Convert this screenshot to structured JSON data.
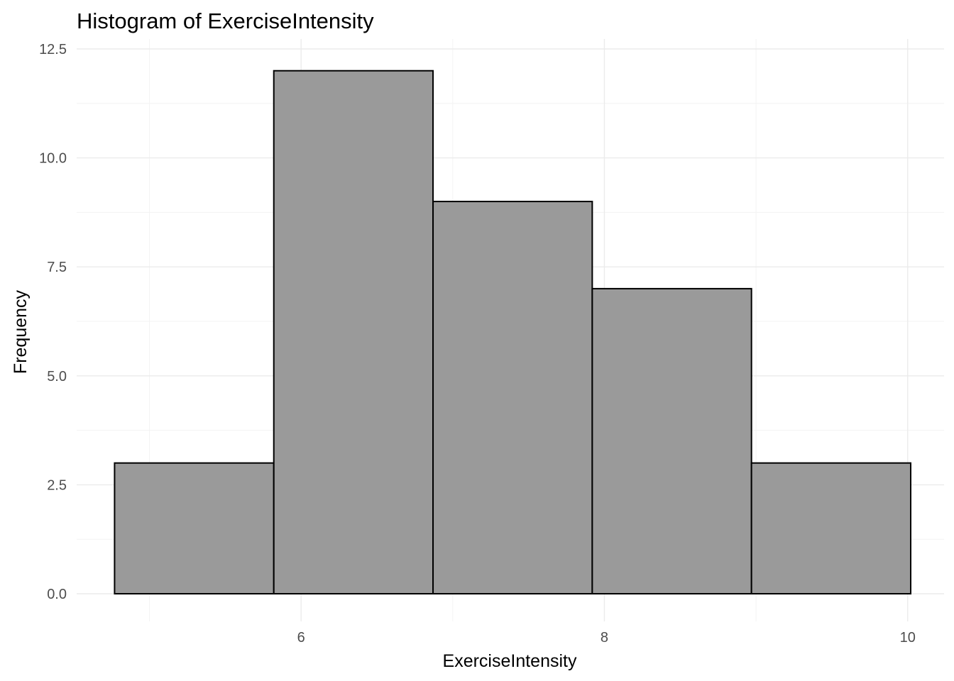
{
  "chart_data": {
    "type": "bar",
    "title": "Histogram of  ExerciseIntensity",
    "xlabel": "ExerciseIntensity",
    "ylabel": "Frequency",
    "bins": [
      {
        "x0": 4.77,
        "x1": 5.82,
        "count": 3
      },
      {
        "x0": 5.82,
        "x1": 6.87,
        "count": 12
      },
      {
        "x0": 6.87,
        "x1": 7.92,
        "count": 9
      },
      {
        "x0": 7.92,
        "x1": 8.97,
        "count": 7
      },
      {
        "x0": 8.97,
        "x1": 10.02,
        "count": 3
      }
    ],
    "xlim": [
      4.52,
      10.24
    ],
    "ylim": [
      -0.625,
      12.5
    ],
    "x_ticks": [
      6,
      8,
      10
    ],
    "x_tick_labels": [
      "6",
      "8",
      "10"
    ],
    "x_minor_ticks": [
      5,
      7,
      9
    ],
    "y_ticks": [
      0,
      2.5,
      5,
      7.5,
      10,
      12.5
    ],
    "y_tick_labels": [
      "0.0",
      "2.5",
      "5.0",
      "7.5",
      "10.0",
      "12.5"
    ],
    "y_minor_ticks": [
      1.25,
      3.75,
      6.25,
      8.75,
      11.25
    ],
    "grid": true,
    "bar_fill": "#9a9a9a",
    "bar_stroke": "#000000"
  }
}
